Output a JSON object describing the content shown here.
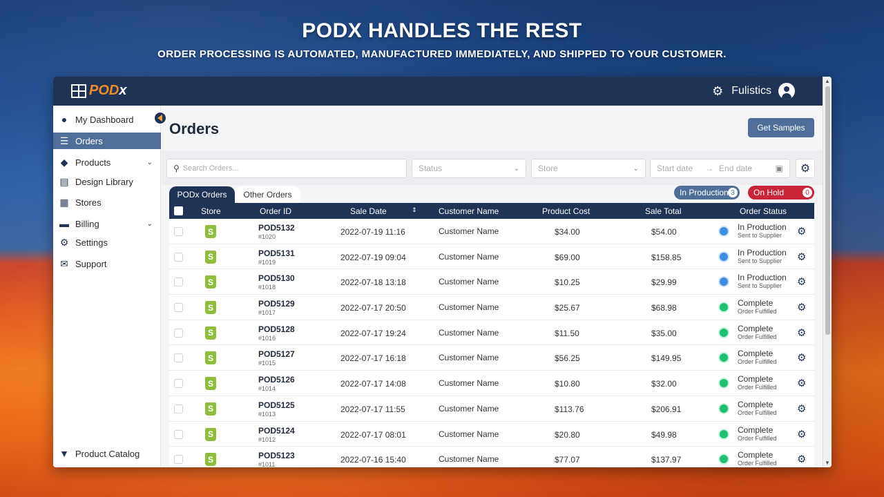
{
  "banner": {
    "headline": "PODX HANDLES THE REST",
    "subline": "ORDER PROCESSING IS AUTOMATED, MANUFACTURED IMMEDIATELY, AND SHIPPED TO YOUR CUSTOMER."
  },
  "app": {
    "logo_text": "POD",
    "logo_x": "x",
    "user_name": "Fulistics"
  },
  "sidebar": {
    "items": [
      {
        "label": "My Dashboard",
        "icon": "user-circle-icon"
      },
      {
        "label": "Orders",
        "icon": "list-icon"
      },
      {
        "label": "Products",
        "icon": "tags-icon"
      },
      {
        "label": "Design Library",
        "icon": "file-image-icon"
      },
      {
        "label": "Stores",
        "icon": "store-icon"
      },
      {
        "label": "Billing",
        "icon": "credit-card-icon"
      },
      {
        "label": "Settings",
        "icon": "gears-icon"
      },
      {
        "label": "Support",
        "icon": "chat-icon"
      }
    ],
    "catalog_label": "Product Catalog"
  },
  "page": {
    "title": "Orders",
    "samples_button": "Get Samples"
  },
  "filters": {
    "search_placeholder": "Search Orders...",
    "status_placeholder": "Status",
    "store_placeholder": "Store",
    "start_date": "Start date",
    "arrow": "→",
    "end_date": "End date"
  },
  "tabs": {
    "active": "PODx Orders",
    "inactive": "Other Orders"
  },
  "pills": {
    "in_production_label": "In Production",
    "in_production_count": "3",
    "on_hold_label": "On Hold",
    "on_hold_count": "0"
  },
  "columns": {
    "store": "Store",
    "order_id": "Order ID",
    "sale_date": "Sale Date",
    "customer_name": "Customer Name",
    "product_cost": "Product Cost",
    "sale_total": "Sale Total",
    "order_status": "Order Status"
  },
  "colors": {
    "in_production": "#3d8fe0",
    "complete": "#1fbf73",
    "navy": "#1f3357",
    "on_hold": "#c9253a"
  },
  "orders": [
    {
      "id": "POD5132",
      "num": "#1020",
      "date": "2022-07-19 11:16",
      "customer": "Customer Name",
      "cost": "$34.00",
      "total": "$54.00",
      "status": "In Production",
      "sub": "Sent to Supplier",
      "kind": "in_production"
    },
    {
      "id": "POD5131",
      "num": "#1019",
      "date": "2022-07-19 09:04",
      "customer": "Customer Name",
      "cost": "$69.00",
      "total": "$158.85",
      "status": "In Production",
      "sub": "Sent to Supplier",
      "kind": "in_production"
    },
    {
      "id": "POD5130",
      "num": "#1018",
      "date": "2022-07-18 13:18",
      "customer": "Customer Name",
      "cost": "$10.25",
      "total": "$29.99",
      "status": "In Production",
      "sub": "Sent to Supplier",
      "kind": "in_production"
    },
    {
      "id": "POD5129",
      "num": "#1017",
      "date": "2022-07-17 20:50",
      "customer": "Customer Name",
      "cost": "$25.67",
      "total": "$68.98",
      "status": "Complete",
      "sub": "Order Fulfilled",
      "kind": "complete"
    },
    {
      "id": "POD5128",
      "num": "#1016",
      "date": "2022-07-17 19:24",
      "customer": "Customer Name",
      "cost": "$11.50",
      "total": "$35.00",
      "status": "Complete",
      "sub": "Order Fulfilled",
      "kind": "complete"
    },
    {
      "id": "POD5127",
      "num": "#1015",
      "date": "2022-07-17 16:18",
      "customer": "Customer Name",
      "cost": "$56.25",
      "total": "$149.95",
      "status": "Complete",
      "sub": "Order Fulfilled",
      "kind": "complete"
    },
    {
      "id": "POD5126",
      "num": "#1014",
      "date": "2022-07-17 14:08",
      "customer": "Customer Name",
      "cost": "$10.80",
      "total": "$32.00",
      "status": "Complete",
      "sub": "Order Fulfilled",
      "kind": "complete"
    },
    {
      "id": "POD5125",
      "num": "#1013",
      "date": "2022-07-17 11:55",
      "customer": "Customer Name",
      "cost": "$113.76",
      "total": "$206.91",
      "status": "Complete",
      "sub": "Order Fulfilled",
      "kind": "complete"
    },
    {
      "id": "POD5124",
      "num": "#1012",
      "date": "2022-07-17 08:01",
      "customer": "Customer Name",
      "cost": "$20.80",
      "total": "$49.98",
      "status": "Complete",
      "sub": "Order Fulfilled",
      "kind": "complete"
    },
    {
      "id": "POD5123",
      "num": "#1011",
      "date": "2022-07-16 15:40",
      "customer": "Customer Name",
      "cost": "$77.07",
      "total": "$137.97",
      "status": "Complete",
      "sub": "Order Fulfilled",
      "kind": "complete"
    }
  ]
}
